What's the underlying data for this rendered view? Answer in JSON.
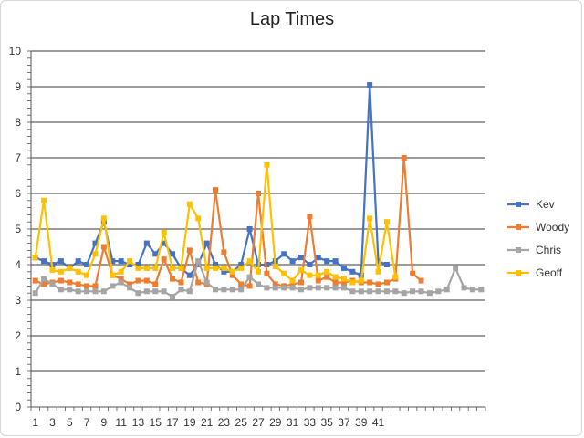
{
  "chart_data": {
    "type": "line",
    "title": "Lap Times",
    "xlabel": "",
    "ylabel": "",
    "ylim": [
      0,
      10
    ],
    "y_ticks": [
      0,
      1,
      2,
      3,
      4,
      5,
      6,
      7,
      8,
      9,
      10
    ],
    "x_tick_labels": [
      "1",
      "3",
      "5",
      "7",
      "9",
      "11",
      "13",
      "15",
      "17",
      "19",
      "21",
      "23",
      "25",
      "27",
      "29",
      "31",
      "33",
      "35",
      "37",
      "39",
      "41"
    ],
    "x_count": 53,
    "grid": "horizontal",
    "legend_position": "right",
    "series": [
      {
        "name": "Kev",
        "color": "#4472c4",
        "marker": "square",
        "values": [
          4.2,
          4.1,
          4.0,
          4.1,
          3.9,
          4.1,
          4.0,
          4.6,
          5.2,
          4.1,
          4.1,
          4.0,
          4.0,
          4.6,
          4.3,
          4.6,
          4.3,
          3.9,
          3.7,
          4.0,
          4.6,
          4.0,
          3.8,
          3.8,
          4.0,
          5.0,
          4.0,
          4.0,
          4.1,
          4.3,
          4.1,
          4.2,
          4.0,
          4.2,
          4.1,
          4.1,
          3.9,
          3.8,
          3.7,
          9.05,
          4.1,
          4.0
        ]
      },
      {
        "name": "Woody",
        "color": "#ed7d31",
        "marker": "square",
        "values": [
          3.55,
          3.45,
          3.5,
          3.55,
          3.5,
          3.45,
          3.4,
          3.4,
          4.5,
          3.7,
          3.6,
          3.45,
          3.55,
          3.55,
          3.45,
          4.15,
          3.6,
          3.5,
          4.4,
          3.5,
          3.45,
          6.1,
          4.35,
          3.7,
          3.45,
          3.4,
          6.0,
          3.75,
          3.45,
          3.4,
          3.45,
          3.5,
          5.35,
          3.55,
          3.65,
          3.5,
          3.5,
          3.55,
          3.5,
          3.5,
          3.45,
          3.5,
          3.6,
          7.0,
          3.75,
          3.55
        ]
      },
      {
        "name": "Chris",
        "color": "#a5a5a5",
        "marker": "square",
        "values": [
          3.2,
          3.6,
          3.45,
          3.3,
          3.3,
          3.25,
          3.25,
          3.25,
          3.25,
          3.4,
          3.5,
          3.35,
          3.2,
          3.25,
          3.25,
          3.25,
          3.1,
          3.3,
          3.25,
          4.1,
          3.5,
          3.3,
          3.3,
          3.3,
          3.3,
          3.65,
          3.45,
          3.35,
          3.35,
          3.35,
          3.35,
          3.3,
          3.35,
          3.35,
          3.35,
          3.35,
          3.35,
          3.25,
          3.25,
          3.25,
          3.25,
          3.25,
          3.25,
          3.2,
          3.25,
          3.25,
          3.2,
          3.25,
          3.3,
          3.9,
          3.35,
          3.3,
          3.3
        ]
      },
      {
        "name": "Geoff",
        "color": "#ffc000",
        "marker": "square",
        "values": [
          4.2,
          5.8,
          3.85,
          3.8,
          3.9,
          3.8,
          3.7,
          4.3,
          5.3,
          3.7,
          3.8,
          4.1,
          3.9,
          3.9,
          3.9,
          4.9,
          3.9,
          3.9,
          5.7,
          5.3,
          3.9,
          3.9,
          3.9,
          3.8,
          3.9,
          4.1,
          3.8,
          6.8,
          3.95,
          3.75,
          3.55,
          3.85,
          3.7,
          3.7,
          3.8,
          3.65,
          3.6,
          3.5,
          3.55,
          5.3,
          3.8,
          5.2,
          3.65
        ]
      }
    ]
  }
}
